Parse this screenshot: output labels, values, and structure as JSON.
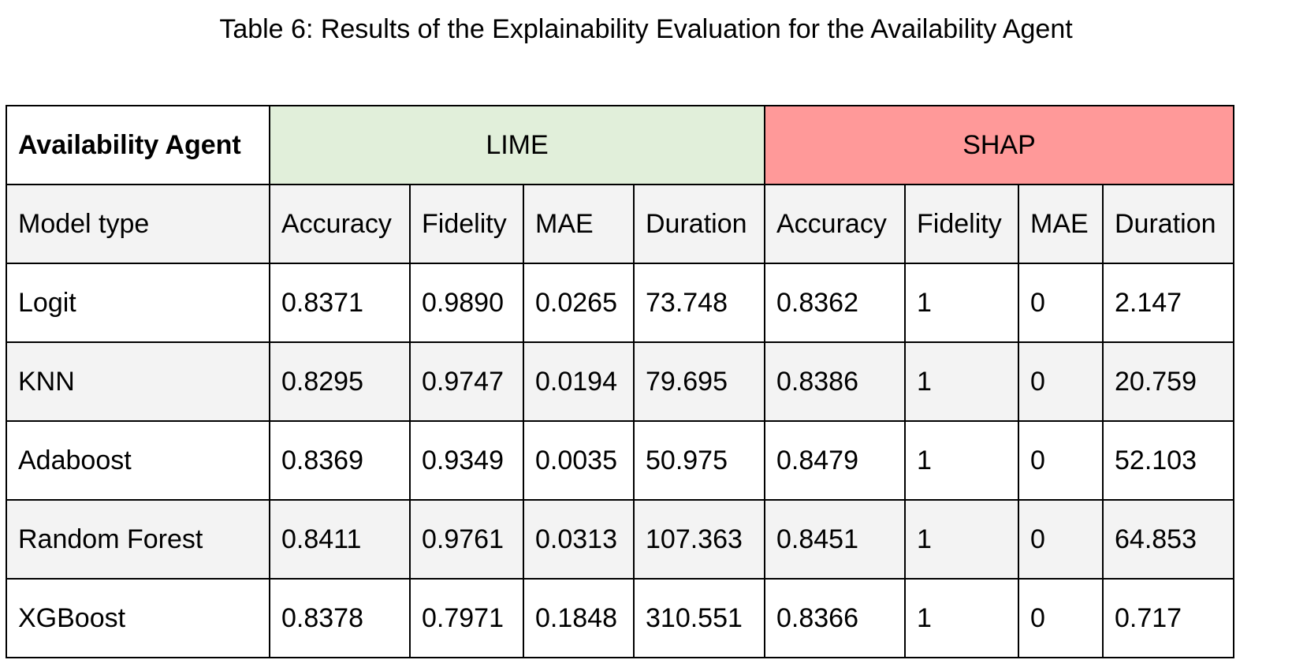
{
  "caption": "Table 6: Results of the Explainability Evaluation for the Availability Agent",
  "table": {
    "corner_label": "Availability Agent",
    "groups": {
      "lime": {
        "label": "LIME",
        "color": "#e1efda"
      },
      "shap": {
        "label": "SHAP",
        "color": "#ff9999"
      }
    },
    "columns": [
      "Model type",
      "Accuracy",
      "Fidelity",
      "MAE",
      "Duration",
      "Accuracy",
      "Fidelity",
      "MAE",
      "Duration"
    ],
    "rows": [
      [
        "Logit",
        "0.8371",
        "0.9890",
        "0.0265",
        "73.748",
        "0.8362",
        "1",
        "0",
        "2.147"
      ],
      [
        "KNN",
        "0.8295",
        "0.9747",
        "0.0194",
        "79.695",
        "0.8386",
        "1",
        "0",
        "20.759"
      ],
      [
        "Adaboost",
        "0.8369",
        "0.9349",
        "0.0035",
        "50.975",
        "0.8479",
        "1",
        "0",
        "52.103"
      ],
      [
        "Random Forest",
        "0.8411",
        "0.9761",
        "0.0313",
        "107.363",
        "0.8451",
        "1",
        "0",
        "64.853"
      ],
      [
        "XGBoost",
        "0.8378",
        "0.7971",
        "0.1848",
        "310.551",
        "0.8366",
        "1",
        "0",
        "0.717"
      ]
    ]
  }
}
